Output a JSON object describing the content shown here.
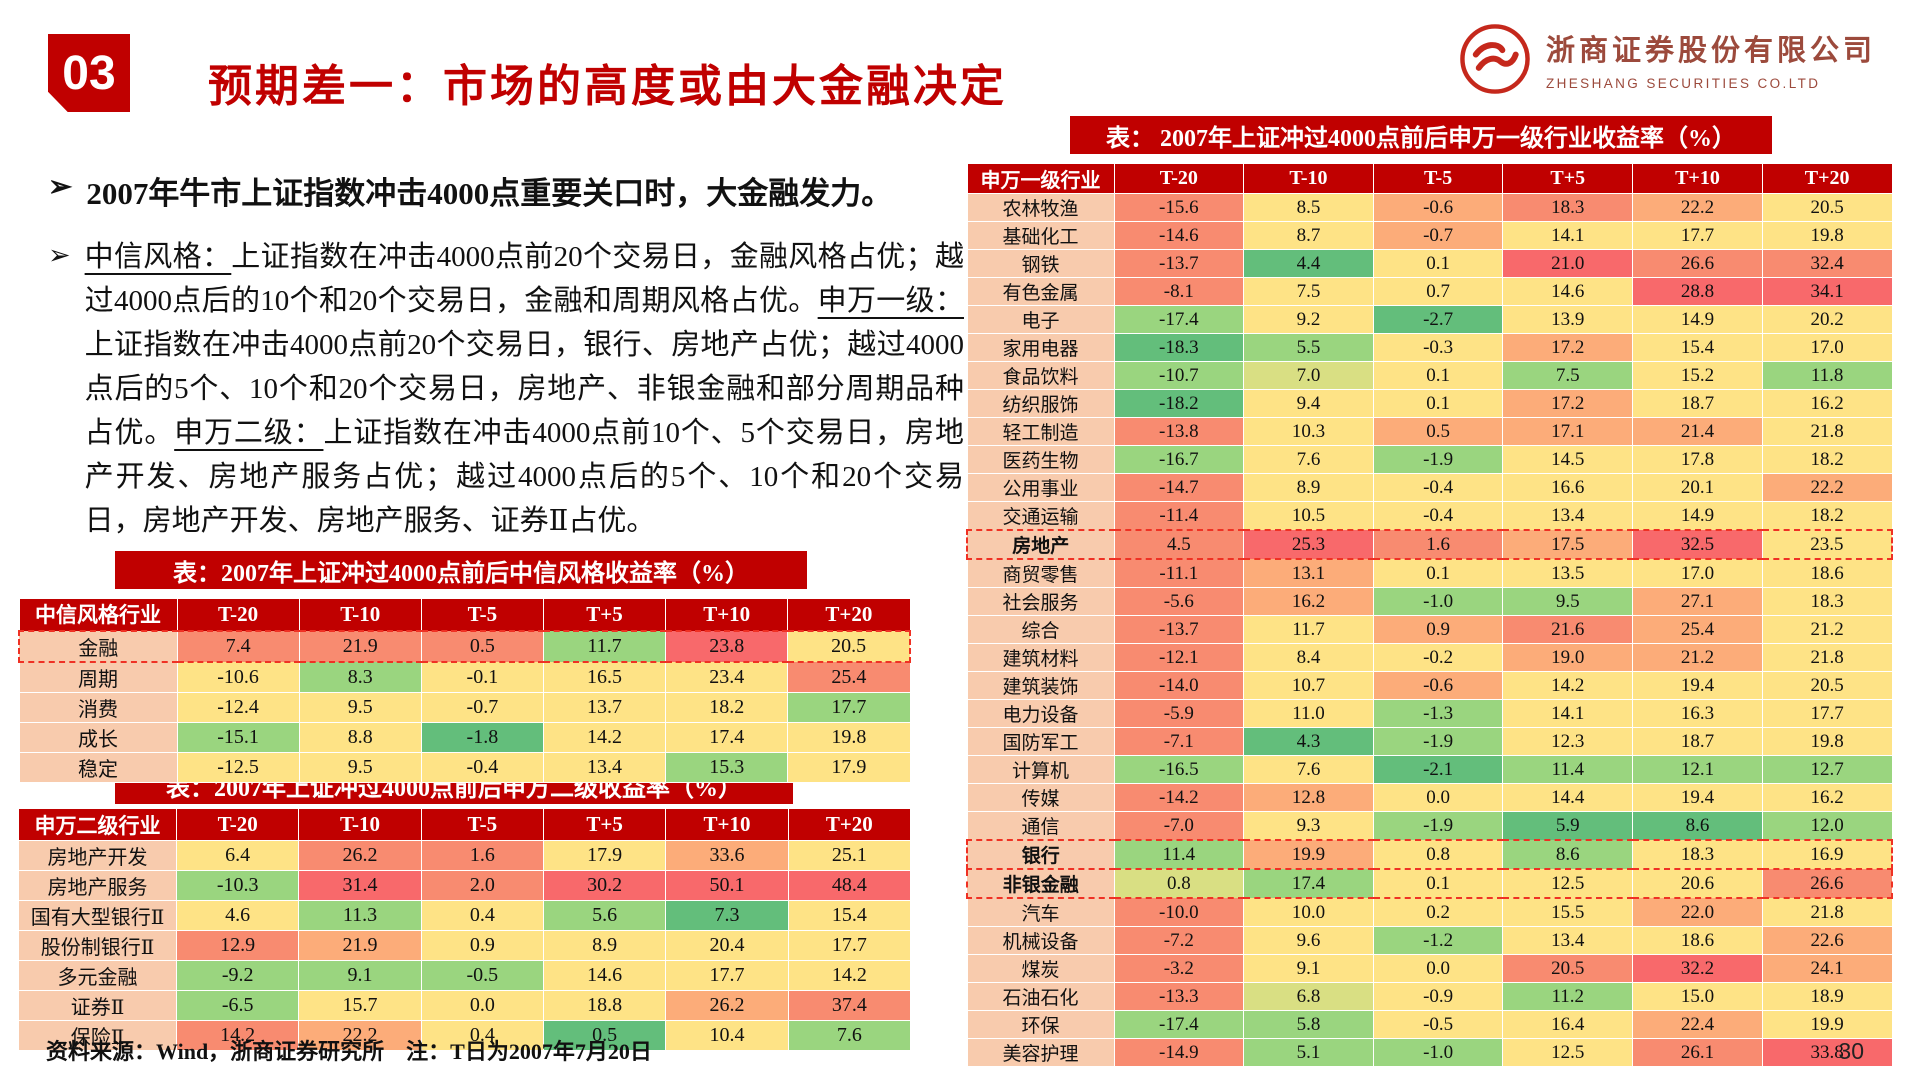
{
  "page_number": "30",
  "bullet_marker": "➢",
  "header": {
    "badge": "03",
    "title": "预期差一：市场的高度或由大金融决定",
    "logo_cn": "浙商证券股份有限公司",
    "logo_en": "ZHESHANG SECURITIES CO.LTD",
    "brand_red": "#c00000"
  },
  "bullets": [
    {
      "bold": true,
      "segments": [
        {
          "text": "2007年牛市上证指数冲击4000点重要关口时，大金融发力。"
        }
      ]
    },
    {
      "bold": false,
      "segments": [
        {
          "text": "中信风格：",
          "underline": true
        },
        {
          "text": "上证指数在冲击4000点前20个交易日，金融风格占优；越过4000点后的10个和20个交易日，金融和周期风格占优。"
        },
        {
          "text": "申万一级：",
          "underline": true
        },
        {
          "text": "上证指数在冲击4000点前20个交易日，银行、房地产占优；越过4000点后的5个、10个和20个交易日，房地产、非银金融和部分周期品种占优。"
        },
        {
          "text": "申万二级：",
          "underline": true
        },
        {
          "text": "上证指数在冲击4000点前10个、5个交易日，房地产开发、房地产服务占优；越过4000点后的5个、10个和20个交易日，房地产开发、房地产服务、证券Ⅱ占优。"
        }
      ]
    }
  ],
  "palette": {
    "R": "#f8696b",
    "r": "#f88b70",
    "o": "#fcac79",
    "y": "#fee386",
    "yg": "#d9df83",
    "g": "#9ad57f",
    "G": "#63be7b"
  },
  "tables": [
    {
      "id": "citic",
      "title": "表：2007年上证冲过4000点前后中信风格收益率（%）",
      "label_header": "中信风格行业",
      "columns": [
        "T-20",
        "T-10",
        "T-5",
        "T+5",
        "T+10",
        "T+20"
      ],
      "rows": [
        {
          "label": "金融",
          "highlight": true,
          "values": [
            "7.4",
            "21.9",
            "0.5",
            "11.7",
            "23.8",
            "20.5"
          ],
          "colors": [
            "r",
            "r",
            "r",
            "g",
            "R",
            "y"
          ]
        },
        {
          "label": "周期",
          "values": [
            "-10.6",
            "8.3",
            "-0.1",
            "16.5",
            "23.4",
            "25.4"
          ],
          "colors": [
            "y",
            "g",
            "y",
            "y",
            "y",
            "r"
          ]
        },
        {
          "label": "消费",
          "values": [
            "-12.4",
            "9.5",
            "-0.7",
            "13.7",
            "18.2",
            "17.7"
          ],
          "colors": [
            "y",
            "y",
            "y",
            "y",
            "y",
            "g"
          ]
        },
        {
          "label": "成长",
          "values": [
            "-15.1",
            "8.8",
            "-1.8",
            "14.2",
            "17.4",
            "19.8"
          ],
          "colors": [
            "g",
            "y",
            "G",
            "y",
            "y",
            "y"
          ]
        },
        {
          "label": "稳定",
          "values": [
            "-12.5",
            "9.5",
            "-0.4",
            "13.4",
            "15.3",
            "17.9"
          ],
          "colors": [
            "y",
            "y",
            "y",
            "y",
            "g",
            "y"
          ]
        }
      ]
    },
    {
      "id": "sw2",
      "title": "表：2007年上证冲过4000点前后申万二级收益率（%）",
      "label_header": "申万二级行业",
      "columns": [
        "T-20",
        "T-10",
        "T-5",
        "T+5",
        "T+10",
        "T+20"
      ],
      "rows": [
        {
          "label": "房地产开发",
          "values": [
            "6.4",
            "26.2",
            "1.6",
            "17.9",
            "33.6",
            "25.1"
          ],
          "colors": [
            "y",
            "r",
            "r",
            "y",
            "o",
            "y"
          ]
        },
        {
          "label": "房地产服务",
          "values": [
            "-10.3",
            "31.4",
            "2.0",
            "30.2",
            "50.1",
            "48.4"
          ],
          "colors": [
            "g",
            "R",
            "r",
            "R",
            "R",
            "R"
          ]
        },
        {
          "label": "国有大型银行Ⅱ",
          "values": [
            "4.6",
            "11.3",
            "0.4",
            "5.6",
            "7.3",
            "15.4"
          ],
          "colors": [
            "y",
            "g",
            "y",
            "g",
            "G",
            "y"
          ]
        },
        {
          "label": "股份制银行Ⅱ",
          "values": [
            "12.9",
            "21.9",
            "0.9",
            "8.9",
            "20.4",
            "17.7"
          ],
          "colors": [
            "r",
            "o",
            "y",
            "y",
            "y",
            "y"
          ]
        },
        {
          "label": "多元金融",
          "values": [
            "-9.2",
            "9.1",
            "-0.5",
            "14.6",
            "17.7",
            "14.2"
          ],
          "colors": [
            "g",
            "g",
            "g",
            "y",
            "y",
            "y"
          ]
        },
        {
          "label": "证券Ⅱ",
          "values": [
            "-6.5",
            "15.7",
            "0.0",
            "18.8",
            "26.2",
            "37.4"
          ],
          "colors": [
            "g",
            "y",
            "y",
            "y",
            "o",
            "r"
          ]
        },
        {
          "label": "保险Ⅱ",
          "values": [
            "14.2",
            "22.2",
            "0.4",
            "0.5",
            "10.4",
            "7.6"
          ],
          "colors": [
            "r",
            "o",
            "y",
            "G",
            "y",
            "g"
          ]
        }
      ]
    },
    {
      "id": "sw1",
      "title": "表： 2007年上证冲过4000点前后申万一级行业收益率（%）",
      "label_header": "申万一级行业",
      "columns": [
        "T-20",
        "T-10",
        "T-5",
        "T+5",
        "T+10",
        "T+20"
      ],
      "rows": [
        {
          "label": "农林牧渔",
          "values": [
            "-15.6",
            "8.5",
            "-0.6",
            "18.3",
            "22.2",
            "20.5"
          ],
          "colors": [
            "r",
            "y",
            "o",
            "r",
            "o",
            "y"
          ]
        },
        {
          "label": "基础化工",
          "values": [
            "-14.6",
            "8.7",
            "-0.7",
            "14.1",
            "17.7",
            "19.8"
          ],
          "colors": [
            "r",
            "y",
            "o",
            "y",
            "y",
            "y"
          ]
        },
        {
          "label": "钢铁",
          "values": [
            "-13.7",
            "4.4",
            "0.1",
            "21.0",
            "26.6",
            "32.4"
          ],
          "colors": [
            "r",
            "G",
            "y",
            "R",
            "r",
            "r"
          ]
        },
        {
          "label": "有色金属",
          "values": [
            "-8.1",
            "7.5",
            "0.7",
            "14.6",
            "28.8",
            "34.1"
          ],
          "colors": [
            "r",
            "y",
            "y",
            "y",
            "R",
            "R"
          ]
        },
        {
          "label": "电子",
          "values": [
            "-17.4",
            "9.2",
            "-2.7",
            "13.9",
            "14.9",
            "20.2"
          ],
          "colors": [
            "g",
            "y",
            "G",
            "y",
            "y",
            "y"
          ]
        },
        {
          "label": "家用电器",
          "values": [
            "-18.3",
            "5.5",
            "-0.3",
            "17.2",
            "15.4",
            "17.0"
          ],
          "colors": [
            "G",
            "g",
            "y",
            "o",
            "y",
            "y"
          ]
        },
        {
          "label": "食品饮料",
          "values": [
            "-10.7",
            "7.0",
            "0.1",
            "7.5",
            "15.2",
            "11.8"
          ],
          "colors": [
            "g",
            "yg",
            "y",
            "g",
            "y",
            "g"
          ]
        },
        {
          "label": "纺织服饰",
          "values": [
            "-18.2",
            "9.4",
            "0.1",
            "17.2",
            "18.7",
            "16.2"
          ],
          "colors": [
            "G",
            "y",
            "y",
            "o",
            "y",
            "y"
          ]
        },
        {
          "label": "轻工制造",
          "values": [
            "-13.8",
            "10.3",
            "0.5",
            "17.1",
            "21.4",
            "21.8"
          ],
          "colors": [
            "r",
            "y",
            "o",
            "o",
            "o",
            "y"
          ]
        },
        {
          "label": "医药生物",
          "values": [
            "-16.7",
            "7.6",
            "-1.9",
            "14.5",
            "17.8",
            "18.2"
          ],
          "colors": [
            "g",
            "y",
            "g",
            "y",
            "y",
            "y"
          ]
        },
        {
          "label": "公用事业",
          "values": [
            "-14.7",
            "8.9",
            "-0.4",
            "16.6",
            "20.1",
            "22.2"
          ],
          "colors": [
            "r",
            "y",
            "y",
            "y",
            "y",
            "o"
          ]
        },
        {
          "label": "交通运输",
          "values": [
            "-11.4",
            "10.5",
            "-0.4",
            "13.4",
            "14.9",
            "18.2"
          ],
          "colors": [
            "r",
            "y",
            "y",
            "y",
            "y",
            "y"
          ]
        },
        {
          "label": "房地产",
          "bold": true,
          "highlight": true,
          "values": [
            "4.5",
            "25.3",
            "1.6",
            "17.5",
            "32.5",
            "23.5"
          ],
          "colors": [
            "r",
            "R",
            "r",
            "o",
            "R",
            "y"
          ]
        },
        {
          "label": "商贸零售",
          "values": [
            "-11.1",
            "13.1",
            "0.1",
            "13.5",
            "17.0",
            "18.6"
          ],
          "colors": [
            "r",
            "o",
            "y",
            "y",
            "y",
            "y"
          ]
        },
        {
          "label": "社会服务",
          "values": [
            "-5.6",
            "16.2",
            "-1.0",
            "9.5",
            "27.1",
            "18.3"
          ],
          "colors": [
            "r",
            "o",
            "g",
            "g",
            "o",
            "y"
          ]
        },
        {
          "label": "综合",
          "values": [
            "-13.7",
            "11.7",
            "0.9",
            "21.6",
            "25.4",
            "21.2"
          ],
          "colors": [
            "r",
            "y",
            "o",
            "r",
            "o",
            "y"
          ]
        },
        {
          "label": "建筑材料",
          "values": [
            "-12.1",
            "8.4",
            "-0.2",
            "19.0",
            "21.2",
            "21.8"
          ],
          "colors": [
            "r",
            "y",
            "y",
            "o",
            "o",
            "y"
          ]
        },
        {
          "label": "建筑装饰",
          "values": [
            "-14.0",
            "10.7",
            "-0.6",
            "14.2",
            "19.4",
            "20.5"
          ],
          "colors": [
            "r",
            "y",
            "o",
            "y",
            "y",
            "y"
          ]
        },
        {
          "label": "电力设备",
          "values": [
            "-5.9",
            "11.0",
            "-1.3",
            "14.1",
            "16.3",
            "17.7"
          ],
          "colors": [
            "r",
            "y",
            "g",
            "y",
            "y",
            "y"
          ]
        },
        {
          "label": "国防军工",
          "values": [
            "-7.1",
            "4.3",
            "-1.9",
            "12.3",
            "18.7",
            "19.8"
          ],
          "colors": [
            "r",
            "G",
            "g",
            "y",
            "y",
            "y"
          ]
        },
        {
          "label": "计算机",
          "values": [
            "-16.5",
            "7.6",
            "-2.1",
            "11.4",
            "12.1",
            "12.7"
          ],
          "colors": [
            "g",
            "y",
            "G",
            "g",
            "g",
            "g"
          ]
        },
        {
          "label": "传媒",
          "values": [
            "-14.2",
            "12.8",
            "0.0",
            "14.4",
            "19.4",
            "16.2"
          ],
          "colors": [
            "r",
            "o",
            "y",
            "y",
            "y",
            "y"
          ]
        },
        {
          "label": "通信",
          "values": [
            "-7.0",
            "9.3",
            "-1.9",
            "5.9",
            "8.6",
            "12.0"
          ],
          "colors": [
            "r",
            "y",
            "g",
            "G",
            "G",
            "g"
          ]
        },
        {
          "label": "银行",
          "bold": true,
          "highlight": true,
          "values": [
            "11.4",
            "19.9",
            "0.8",
            "8.6",
            "18.3",
            "16.9"
          ],
          "colors": [
            "g",
            "o",
            "y",
            "g",
            "y",
            "y"
          ]
        },
        {
          "label": "非银金融",
          "bold": true,
          "highlight": true,
          "values": [
            "0.8",
            "17.4",
            "0.1",
            "12.5",
            "20.6",
            "26.6"
          ],
          "colors": [
            "yg",
            "g",
            "y",
            "y",
            "y",
            "r"
          ]
        },
        {
          "label": "汽车",
          "values": [
            "-10.0",
            "10.0",
            "0.2",
            "15.5",
            "22.0",
            "21.8"
          ],
          "colors": [
            "r",
            "y",
            "y",
            "y",
            "o",
            "y"
          ]
        },
        {
          "label": "机械设备",
          "values": [
            "-7.2",
            "9.6",
            "-1.2",
            "13.4",
            "18.6",
            "22.6"
          ],
          "colors": [
            "r",
            "y",
            "g",
            "y",
            "y",
            "o"
          ]
        },
        {
          "label": "煤炭",
          "values": [
            "-3.2",
            "9.1",
            "0.0",
            "20.5",
            "32.2",
            "24.1"
          ],
          "colors": [
            "r",
            "y",
            "y",
            "r",
            "R",
            "o"
          ]
        },
        {
          "label": "石油石化",
          "values": [
            "-13.3",
            "6.8",
            "-0.9",
            "11.2",
            "15.0",
            "18.9"
          ],
          "colors": [
            "r",
            "yg",
            "y",
            "g",
            "y",
            "y"
          ]
        },
        {
          "label": "环保",
          "values": [
            "-17.4",
            "5.8",
            "-0.5",
            "16.4",
            "22.4",
            "19.9"
          ],
          "colors": [
            "g",
            "g",
            "y",
            "y",
            "o",
            "y"
          ]
        },
        {
          "label": "美容护理",
          "values": [
            "-14.9",
            "5.1",
            "-1.0",
            "12.5",
            "26.1",
            "33.8"
          ],
          "colors": [
            "r",
            "g",
            "g",
            "y",
            "r",
            "R"
          ]
        }
      ]
    }
  ],
  "footer": {
    "text": "资料来源：Wind，浙商证券研究所　注：T日为2007年7月20日"
  }
}
